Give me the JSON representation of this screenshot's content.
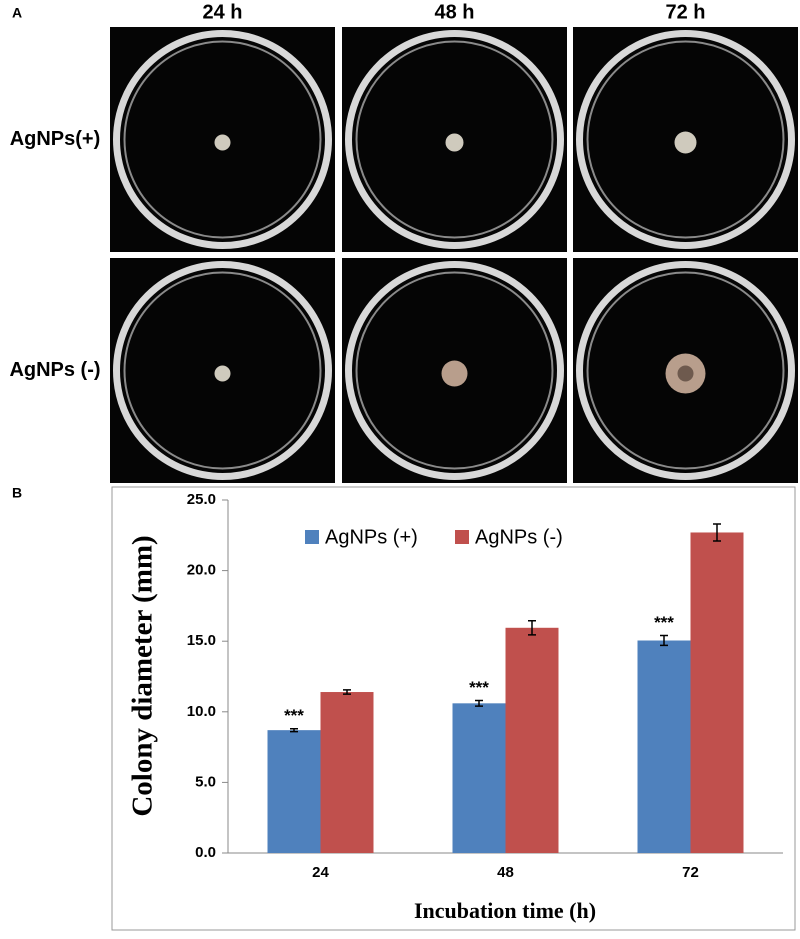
{
  "panel_a": {
    "label": "A",
    "columns": [
      "24 h",
      "48 h",
      "72 h"
    ],
    "rows": [
      "AgNPs(+)",
      "AgNPs (-)"
    ]
  },
  "chart_data": {
    "type": "bar",
    "panel_label": "B",
    "x_label": "Incubation time (h)",
    "y_label": "Colony diameter (mm)",
    "categories": [
      "24",
      "48",
      "72"
    ],
    "series": [
      {
        "name": "AgNPs (+)",
        "color": "#4f81bd",
        "values": [
          8.7,
          10.6,
          15.05
        ],
        "errors": [
          0.1,
          0.2,
          0.35
        ],
        "significance_labels": [
          "***",
          "***",
          "***"
        ]
      },
      {
        "name": "AgNPs (-)",
        "color": "#c0504d",
        "values": [
          11.4,
          15.95,
          22.7
        ],
        "errors": [
          0.15,
          0.5,
          0.6
        ]
      }
    ],
    "ylim": [
      0,
      25
    ],
    "yticks": [
      {
        "value": 0,
        "label": "0.0"
      },
      {
        "value": 5,
        "label": "5.0"
      },
      {
        "value": 10,
        "label": "10.0"
      },
      {
        "value": 15,
        "label": "15.0"
      },
      {
        "value": 20,
        "label": "20.0"
      },
      {
        "value": 25,
        "label": "25.0"
      }
    ],
    "grid": false,
    "legend": "top"
  }
}
